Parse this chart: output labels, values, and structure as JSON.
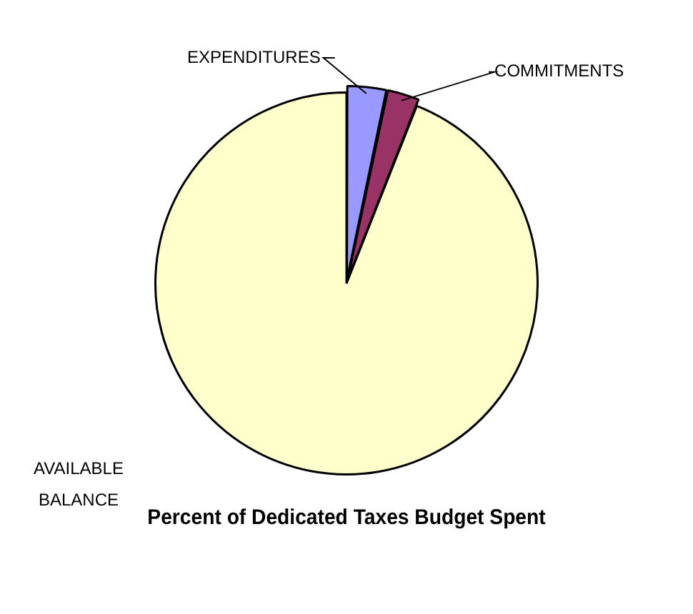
{
  "chart_data": {
    "type": "pie",
    "title": "Percent of Dedicated Taxes Budget Spent",
    "categories": [
      "EXPENDITURES",
      "COMMITMENTS",
      "AVAILABLE BALANCE"
    ],
    "values": [
      3.3,
      2.7,
      94
    ],
    "colors": [
      "#9999ff",
      "#993366",
      "#ffffcc"
    ],
    "legend": false
  }
}
